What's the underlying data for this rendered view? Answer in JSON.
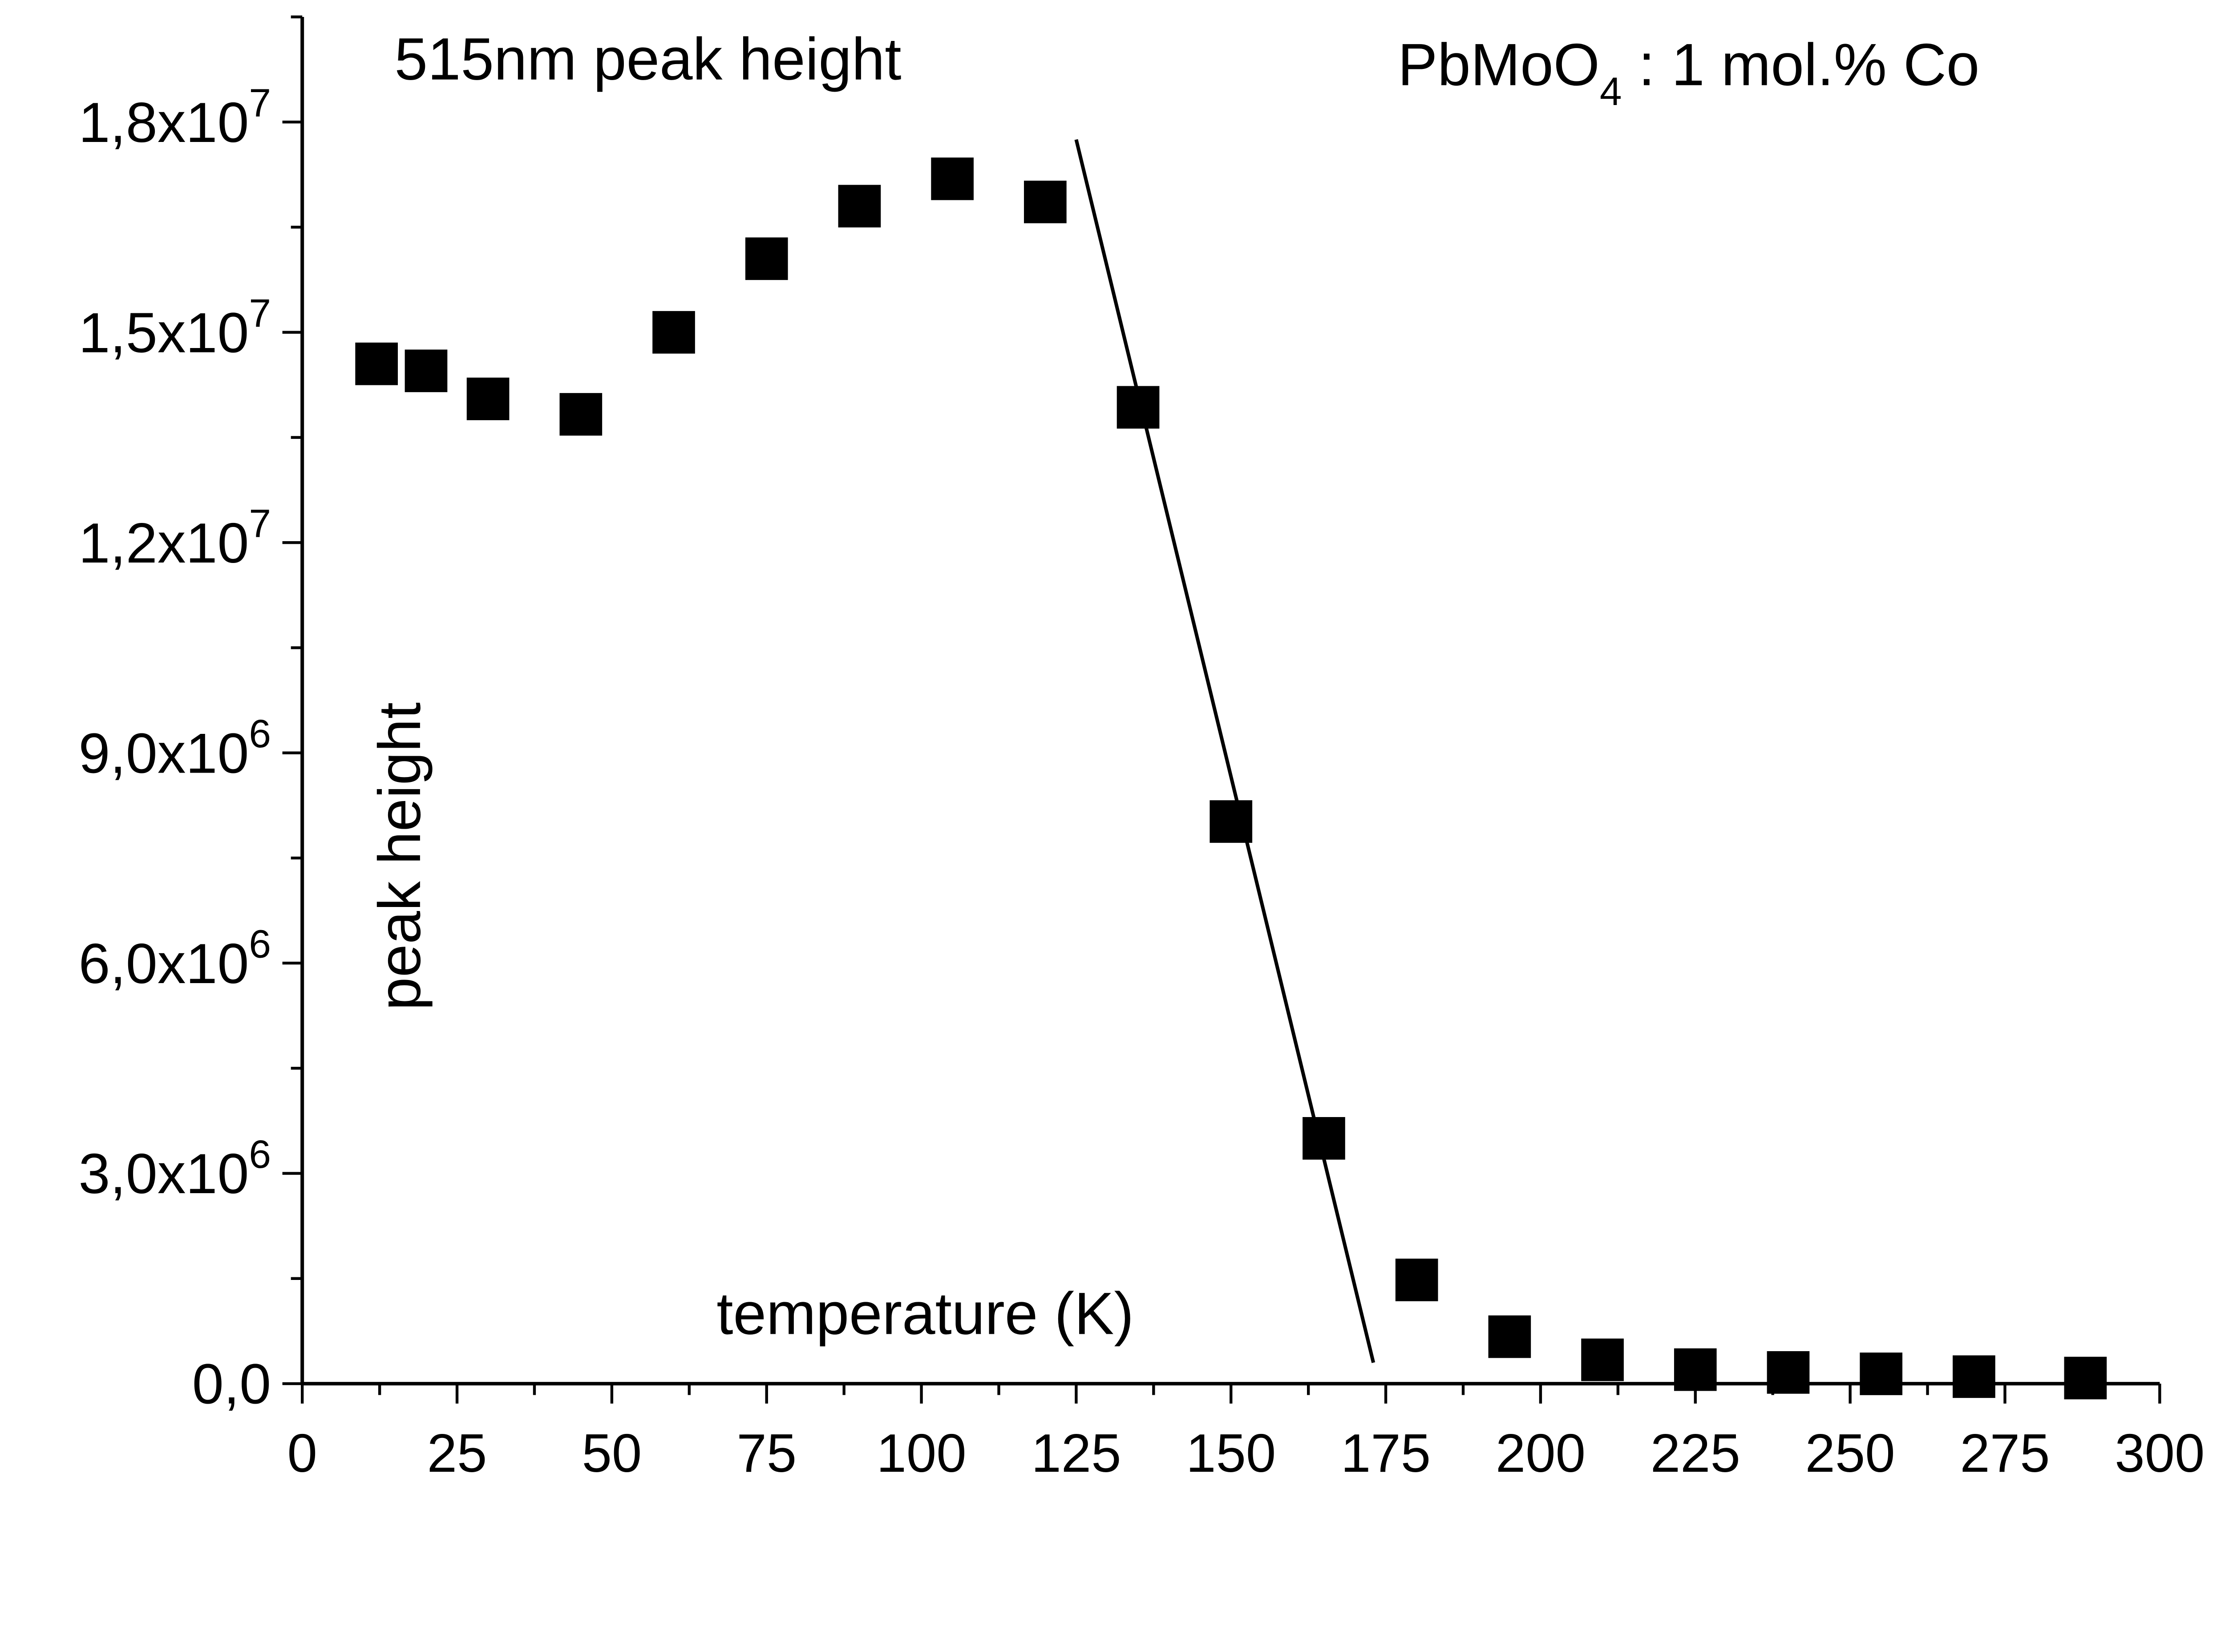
{
  "chart_data": {
    "type": "scatter",
    "title": "515nm peak height",
    "annotation": {
      "base": "PbMoO",
      "sub": "4",
      "rest": " : 1 mol.% Co"
    },
    "xlabel": "temperature (K)",
    "ylabel": "peak height",
    "xlim": [
      0,
      300
    ],
    "ylim": [
      0,
      19500000
    ],
    "grid": false,
    "x_ticks": [
      0,
      25,
      50,
      75,
      100,
      125,
      150,
      175,
      200,
      225,
      250,
      275,
      300
    ],
    "x_tick_labels": [
      "0",
      "25",
      "50",
      "75",
      "100",
      "125",
      "150",
      "175",
      "200",
      "225",
      "250",
      "275",
      "300"
    ],
    "y_ticks": [
      0,
      3000000,
      6000000,
      9000000,
      12000000,
      15000000,
      18000000
    ],
    "y_tick_labels": [
      {
        "mant": "0,0",
        "exp": ""
      },
      {
        "mant": "3,0x10",
        "exp": "6"
      },
      {
        "mant": "6,0x10",
        "exp": "6"
      },
      {
        "mant": "9,0x10",
        "exp": "6"
      },
      {
        "mant": "1,2x10",
        "exp": "7"
      },
      {
        "mant": "1,5x10",
        "exp": "7"
      },
      {
        "mant": "1,8x10",
        "exp": "7"
      }
    ],
    "series": [
      {
        "marker": "square",
        "color": "#000000",
        "x": [
          12,
          20,
          30,
          45,
          60,
          75,
          90,
          105,
          120,
          135,
          150,
          165,
          180,
          195,
          210,
          225,
          240,
          255,
          270,
          288
        ],
        "y": [
          14550000,
          14450000,
          14050000,
          13830000,
          15000000,
          16050000,
          16800000,
          17190000,
          16860000,
          13930000,
          8020000,
          3500000,
          1480000,
          670000,
          340000,
          200000,
          160000,
          140000,
          100000,
          80000
        ]
      }
    ],
    "fit_line": {
      "x": [
        125,
        173
      ],
      "y": [
        17750000,
        300000
      ],
      "color": "#000000"
    }
  }
}
